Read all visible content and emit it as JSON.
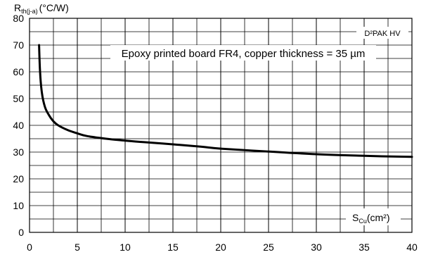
{
  "chart_data": {
    "type": "line",
    "title": "",
    "ylabel": {
      "main": "R",
      "sub": "th(j-a)",
      "unit": "(°C/W)"
    },
    "xlabel": {
      "main": "S",
      "sub": "Cu",
      "unit": "(cm²)"
    },
    "xlim": [
      0,
      40
    ],
    "ylim": [
      0,
      80
    ],
    "x_ticks": [
      0,
      5,
      10,
      15,
      20,
      25,
      30,
      35,
      40
    ],
    "y_ticks": [
      0,
      10,
      20,
      30,
      40,
      50,
      60,
      70,
      80
    ],
    "grid": true,
    "package_label": "D²PAK HV",
    "annotation": "Epoxy printed board FR4, copper thickness = 35 µm",
    "series": [
      {
        "x": [
          1.0,
          1.1,
          1.3,
          1.6,
          2.0,
          2.5,
          3.0,
          4.0,
          5.0,
          6.0,
          8.0,
          10.0,
          12.0,
          15.0,
          18.0,
          20.0,
          25.0,
          30.0,
          35.0,
          40.0
        ],
        "values": [
          70,
          60,
          52,
          47,
          44,
          41.5,
          40,
          38.2,
          37,
          36,
          35,
          34.3,
          33.7,
          32.9,
          32.0,
          31.3,
          30.2,
          29.2,
          28.6,
          28.2
        ]
      }
    ]
  }
}
